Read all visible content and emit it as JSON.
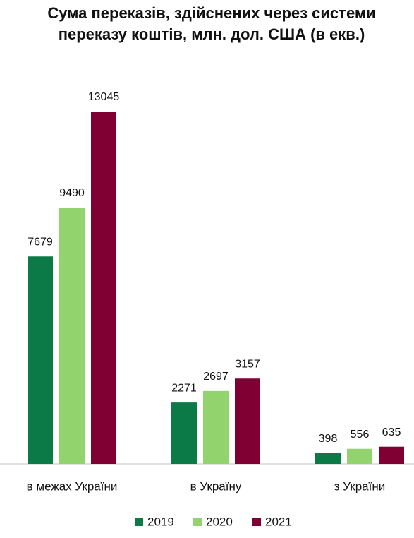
{
  "chart_data": {
    "type": "bar",
    "title": "Сума переказів, здійснених через системи переказу коштів, млн. дол. США (в екв.)",
    "categories": [
      "в межах України",
      "в Україну",
      "з України"
    ],
    "series": [
      {
        "name": "2019",
        "color": "#0b7a47",
        "values": [
          7679,
          2271,
          398
        ]
      },
      {
        "name": "2020",
        "color": "#92d36e",
        "values": [
          9490,
          2697,
          556
        ]
      },
      {
        "name": "2021",
        "color": "#800033",
        "values": [
          13045,
          3157,
          635
        ]
      }
    ],
    "legend": "bottom"
  }
}
